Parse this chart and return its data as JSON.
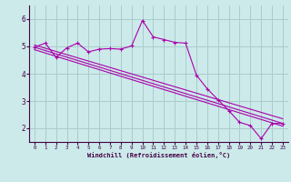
{
  "xlabel": "Windchill (Refroidissement éolien,°C)",
  "background_color": "#cceaea",
  "grid_color": "#aacccc",
  "line_color": "#aa00aa",
  "spine_color": "#440044",
  "tick_color": "#440044",
  "xlim": [
    -0.5,
    23.5
  ],
  "ylim": [
    1.5,
    6.5
  ],
  "yticks": [
    2,
    3,
    4,
    5,
    6
  ],
  "xticks": [
    0,
    1,
    2,
    3,
    4,
    5,
    6,
    7,
    8,
    9,
    10,
    11,
    12,
    13,
    14,
    15,
    16,
    17,
    18,
    19,
    20,
    21,
    22,
    23
  ],
  "curve1_x": [
    0,
    1,
    2,
    3,
    4,
    5,
    6,
    7,
    8,
    9,
    10,
    11,
    12,
    13,
    14,
    15,
    16,
    17,
    18,
    19,
    20,
    21,
    22,
    23
  ],
  "curve1_y": [
    4.97,
    5.12,
    4.6,
    4.95,
    5.12,
    4.8,
    4.9,
    4.92,
    4.9,
    5.02,
    5.95,
    5.35,
    5.25,
    5.15,
    5.12,
    3.95,
    3.45,
    3.05,
    2.65,
    2.22,
    2.1,
    1.62,
    2.18,
    2.18
  ],
  "curve2_x": [
    0,
    23
  ],
  "curve2_y": [
    4.97,
    2.18
  ],
  "curve3_x": [
    0,
    23
  ],
  "curve3_y": [
    5.05,
    2.35
  ],
  "curve4_x": [
    0,
    23
  ],
  "curve4_y": [
    4.88,
    2.08
  ]
}
